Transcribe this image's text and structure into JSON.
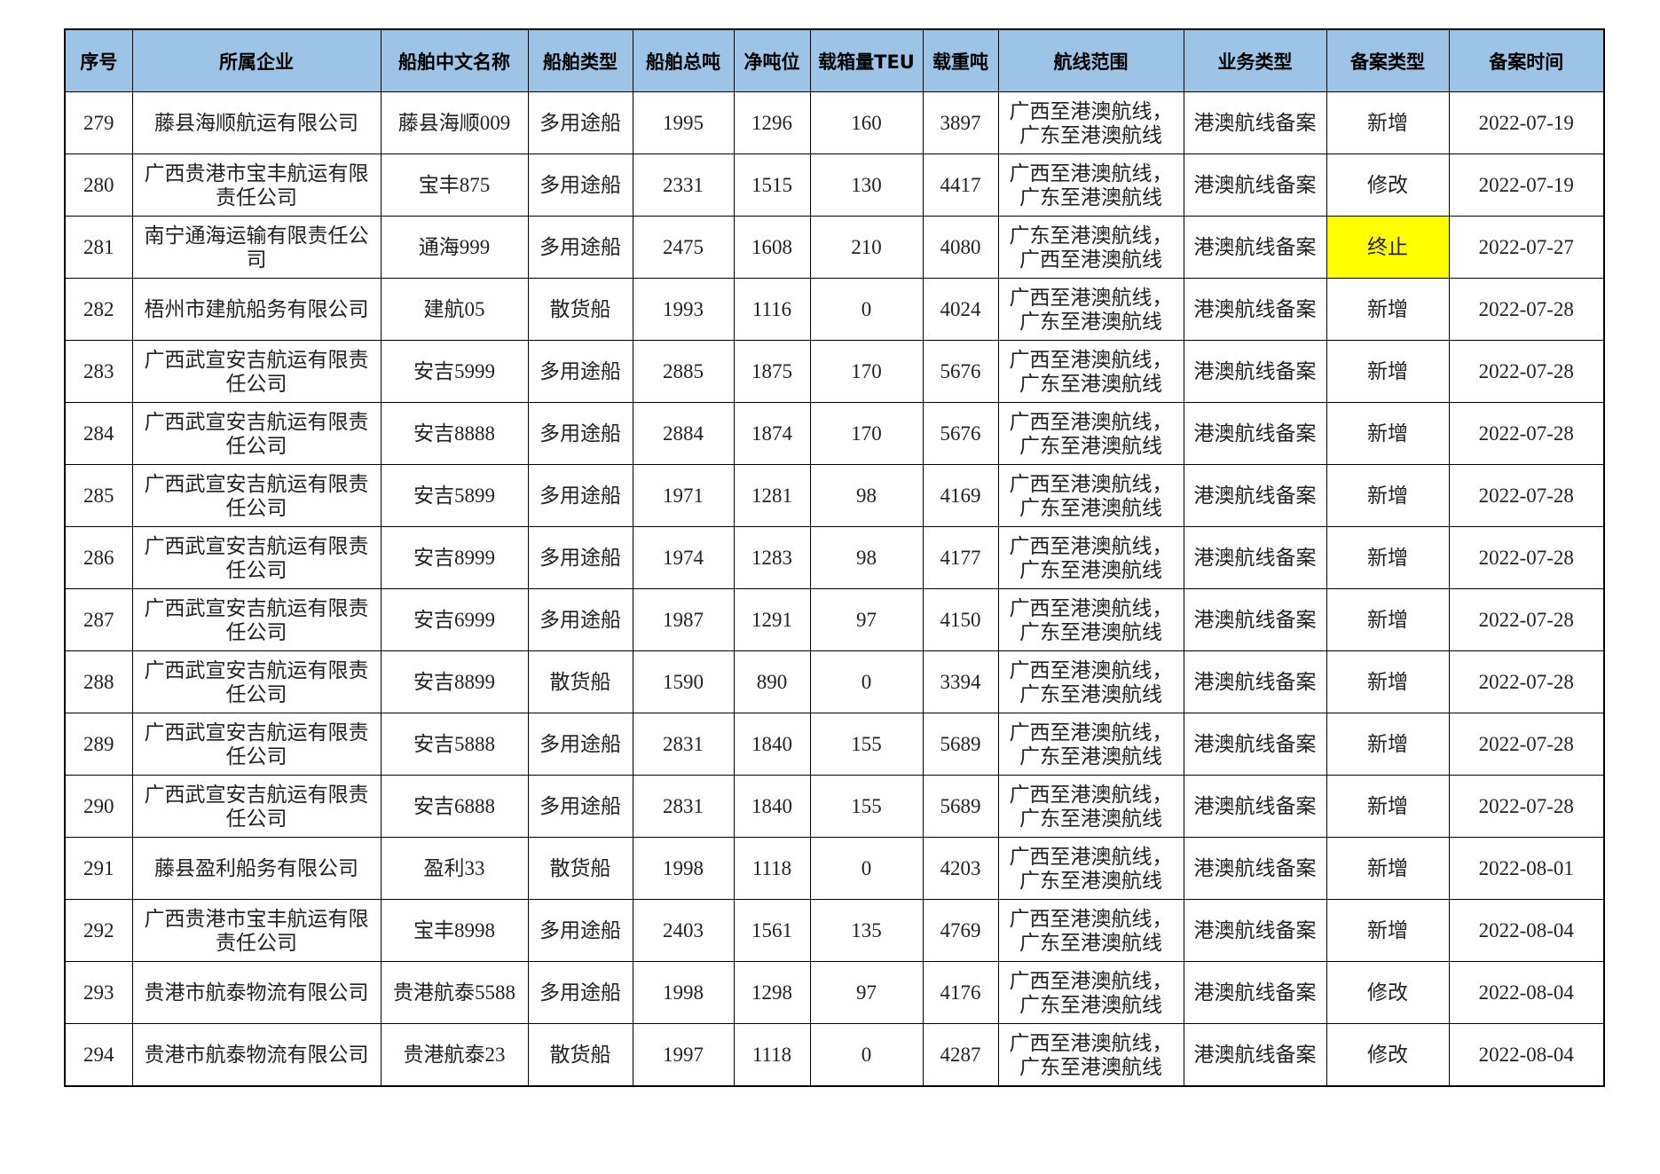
{
  "header": {
    "columns": [
      "序号",
      "所属企业",
      "船舶中文名称",
      "船舶类型",
      "船舶总吨",
      "净吨位",
      "载箱量TEU",
      "载重吨",
      "航线范围",
      "业务类型",
      "备案类型",
      "备案时间"
    ]
  },
  "table": {
    "rows": [
      [
        279,
        "藤县海顺航运有限公司",
        "藤县海顺009",
        "多用途船",
        1995,
        1296,
        160,
        3897,
        "广西至港澳航线，广东至港澳航线",
        "港澳航线备案",
        "新增",
        "2022-07-19"
      ],
      [
        280,
        "广西贵港市宝丰航运有限责任公司",
        "宝丰875",
        "多用途船",
        2331,
        1515,
        130,
        4417,
        "广西至港澳航线，广东至港澳航线",
        "港澳航线备案",
        "修改",
        "2022-07-19"
      ],
      [
        281,
        "南宁通海运输有限责任公司",
        "通海999",
        "多用途船",
        2475,
        1608,
        210,
        4080,
        "广东至港澳航线，广西至港澳航线",
        "港澳航线备案",
        "终止",
        "2022-07-27"
      ],
      [
        282,
        "梧州市建航船务有限公司",
        "建航05",
        "散货船",
        1993,
        1116,
        0,
        4024,
        "广西至港澳航线，广东至港澳航线",
        "港澳航线备案",
        "新增",
        "2022-07-28"
      ],
      [
        283,
        "广西武宣安吉航运有限责任公司",
        "安吉5999",
        "多用途船",
        2885,
        1875,
        170,
        5676,
        "广西至港澳航线，广东至港澳航线",
        "港澳航线备案",
        "新增",
        "2022-07-28"
      ],
      [
        284,
        "广西武宣安吉航运有限责任公司",
        "安吉8888",
        "多用途船",
        2884,
        1874,
        170,
        5676,
        "广西至港澳航线，广东至港澳航线",
        "港澳航线备案",
        "新增",
        "2022-07-28"
      ],
      [
        285,
        "广西武宣安吉航运有限责任公司",
        "安吉5899",
        "多用途船",
        1971,
        1281,
        98,
        4169,
        "广西至港澳航线，广东至港澳航线",
        "港澳航线备案",
        "新增",
        "2022-07-28"
      ],
      [
        286,
        "广西武宣安吉航运有限责任公司",
        "安吉8999",
        "多用途船",
        1974,
        1283,
        98,
        4177,
        "广西至港澳航线，广东至港澳航线",
        "港澳航线备案",
        "新增",
        "2022-07-28"
      ],
      [
        287,
        "广西武宣安吉航运有限责任公司",
        "安吉6999",
        "多用途船",
        1987,
        1291,
        97,
        4150,
        "广西至港澳航线，广东至港澳航线",
        "港澳航线备案",
        "新增",
        "2022-07-28"
      ],
      [
        288,
        "广西武宣安吉航运有限责任公司",
        "安吉8899",
        "散货船",
        1590,
        890,
        0,
        3394,
        "广西至港澳航线，广东至港澳航线",
        "港澳航线备案",
        "新增",
        "2022-07-28"
      ],
      [
        289,
        "广西武宣安吉航运有限责任公司",
        "安吉5888",
        "多用途船",
        2831,
        1840,
        155,
        5689,
        "广西至港澳航线，广东至港澳航线",
        "港澳航线备案",
        "新增",
        "2022-07-28"
      ],
      [
        290,
        "广西武宣安吉航运有限责任公司",
        "安吉6888",
        "多用途船",
        2831,
        1840,
        155,
        5689,
        "广西至港澳航线，广东至港澳航线",
        "港澳航线备案",
        "新增",
        "2022-07-28"
      ],
      [
        291,
        "藤县盈利船务有限公司",
        "盈利33",
        "散货船",
        1998,
        1118,
        0,
        4203,
        "广西至港澳航线，广东至港澳航线",
        "港澳航线备案",
        "新增",
        "2022-08-01"
      ],
      [
        292,
        "广西贵港市宝丰航运有限责任公司",
        "宝丰8998",
        "多用途船",
        2403,
        1561,
        135,
        4769,
        "广西至港澳航线，广东至港澳航线",
        "港澳航线备案",
        "新增",
        "2022-08-04"
      ],
      [
        293,
        "贵港市航泰物流有限公司",
        "贵港航泰5588",
        "多用途船",
        1998,
        1298,
        97,
        4176,
        "广西至港澳航线，广东至港澳航线",
        "港澳航线备案",
        "修改",
        "2022-08-04"
      ],
      [
        294,
        "贵港市航泰物流有限公司",
        "贵港航泰23",
        "散货船",
        1997,
        1118,
        0,
        4287,
        "广西至港澳航线，广东至港澳航线",
        "港澳航线备案",
        "修改",
        "2022-08-04"
      ]
    ],
    "highlights": [
      {
        "row": 2,
        "col": 10,
        "color": "#ffff00"
      }
    ]
  }
}
